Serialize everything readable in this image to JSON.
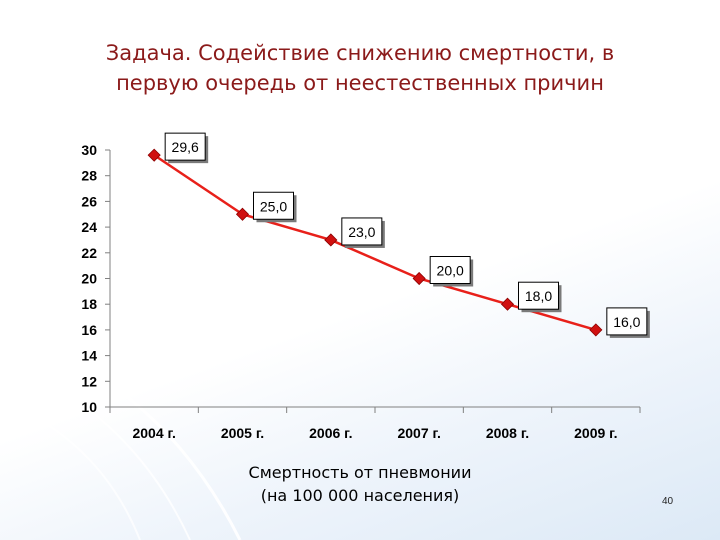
{
  "title_line1": "Задача. Содействие снижению смертности, в",
  "title_line2": "первую очередь от неестественных причин",
  "caption_line1": "Смертность от пневмонии",
  "caption_line2": "(на 100 000 населения)",
  "page_number": "40",
  "chart_data": {
    "type": "line",
    "categories": [
      "2004 г.",
      "2005 г.",
      "2006 г.",
      "2007 г.",
      "2008 г.",
      "2009 г."
    ],
    "values": [
      29.6,
      25.0,
      23.0,
      20.0,
      18.0,
      16.0
    ],
    "data_labels": [
      "29,6",
      "25,0",
      "23,0",
      "20,0",
      "18,0",
      "16,0"
    ],
    "ylim": [
      10,
      30
    ],
    "yticks": [
      "10",
      "12",
      "14",
      "16",
      "18",
      "20",
      "22",
      "24",
      "26",
      "28",
      "30"
    ],
    "line_color": "#e8201a",
    "marker_color": "#d01010",
    "title": "",
    "xlabel": "Смертность от пневмонии (на 100 000 населения)",
    "ylabel": ""
  }
}
